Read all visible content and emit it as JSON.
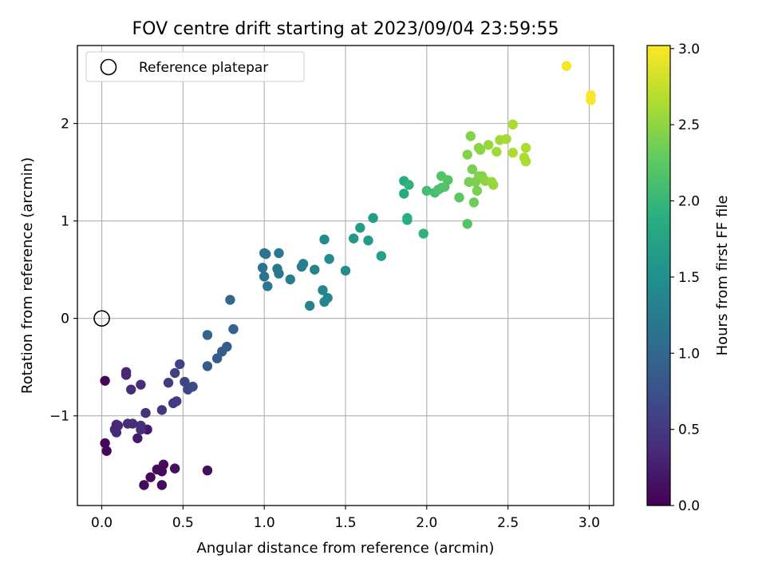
{
  "chart_data": {
    "type": "scatter",
    "title": "FOV centre drift starting at 2023/09/04 23:59:55",
    "xlabel": "Angular distance from reference (arcmin)",
    "ylabel": "Rotation from reference (arcmin)",
    "colorbar_label": "Hours from first FF file",
    "xlim": [
      -0.15,
      3.15
    ],
    "ylim": [
      -1.92,
      2.8
    ],
    "clim": [
      0.0,
      3.02
    ],
    "xticks": [
      0.0,
      0.5,
      1.0,
      1.5,
      2.0,
      2.5,
      3.0
    ],
    "xtick_labels": [
      "0.0",
      "0.5",
      "1.0",
      "1.5",
      "2.0",
      "2.5",
      "3.0"
    ],
    "yticks": [
      -1,
      0,
      1,
      2
    ],
    "ytick_labels": [
      "−1",
      "0",
      "1",
      "2"
    ],
    "cticks": [
      0.0,
      0.5,
      1.0,
      1.5,
      2.0,
      2.5,
      3.0
    ],
    "ctick_labels": [
      "0.0",
      "0.5",
      "1.0",
      "1.5",
      "2.0",
      "2.5",
      "3.0"
    ],
    "colormap": "viridis",
    "grid": true,
    "legend": {
      "position": "top-left",
      "entries": [
        "Reference platepar"
      ]
    },
    "reference_point": {
      "x": 0.0,
      "y": 0.0,
      "name": "Reference platepar"
    },
    "points": [
      {
        "x": 0.02,
        "y": -0.64,
        "t": 0.05
      },
      {
        "x": 0.02,
        "y": -1.28,
        "t": 0.05
      },
      {
        "x": 0.03,
        "y": -1.36,
        "t": 0.05
      },
      {
        "x": 0.26,
        "y": -1.71,
        "t": 0.08
      },
      {
        "x": 0.3,
        "y": -1.63,
        "t": 0.08
      },
      {
        "x": 0.34,
        "y": -1.55,
        "t": 0.08
      },
      {
        "x": 0.37,
        "y": -1.71,
        "t": 0.1
      },
      {
        "x": 0.37,
        "y": -1.57,
        "t": 0.1
      },
      {
        "x": 0.38,
        "y": -1.5,
        "t": 0.1
      },
      {
        "x": 0.45,
        "y": -1.54,
        "t": 0.12
      },
      {
        "x": 0.65,
        "y": -1.56,
        "t": 0.12
      },
      {
        "x": 0.28,
        "y": -1.14,
        "t": 0.2
      },
      {
        "x": 0.22,
        "y": -1.23,
        "t": 0.22
      },
      {
        "x": 0.09,
        "y": -1.09,
        "t": 0.35
      },
      {
        "x": 0.08,
        "y": -1.14,
        "t": 0.35
      },
      {
        "x": 0.09,
        "y": -1.17,
        "t": 0.35
      },
      {
        "x": 0.1,
        "y": -1.1,
        "t": 0.35
      },
      {
        "x": 0.15,
        "y": -0.55,
        "t": 0.35
      },
      {
        "x": 0.15,
        "y": -0.58,
        "t": 0.35
      },
      {
        "x": 0.16,
        "y": -1.08,
        "t": 0.4
      },
      {
        "x": 0.19,
        "y": -1.08,
        "t": 0.4
      },
      {
        "x": 0.18,
        "y": -0.73,
        "t": 0.4
      },
      {
        "x": 0.24,
        "y": -0.68,
        "t": 0.4
      },
      {
        "x": 0.24,
        "y": -1.14,
        "t": 0.42
      },
      {
        "x": 0.24,
        "y": -1.1,
        "t": 0.42
      },
      {
        "x": 0.27,
        "y": -0.97,
        "t": 0.45
      },
      {
        "x": 0.37,
        "y": -0.94,
        "t": 0.5
      },
      {
        "x": 0.41,
        "y": -0.66,
        "t": 0.55
      },
      {
        "x": 0.44,
        "y": -0.87,
        "t": 0.55
      },
      {
        "x": 0.46,
        "y": -0.85,
        "t": 0.55
      },
      {
        "x": 0.45,
        "y": -0.56,
        "t": 0.58
      },
      {
        "x": 0.48,
        "y": -0.47,
        "t": 0.6
      },
      {
        "x": 0.51,
        "y": -0.65,
        "t": 0.62
      },
      {
        "x": 0.53,
        "y": -0.73,
        "t": 0.65
      },
      {
        "x": 0.56,
        "y": -0.7,
        "t": 0.68
      },
      {
        "x": 0.65,
        "y": -0.49,
        "t": 0.85
      },
      {
        "x": 0.71,
        "y": -0.41,
        "t": 0.85
      },
      {
        "x": 0.74,
        "y": -0.34,
        "t": 0.88
      },
      {
        "x": 0.77,
        "y": -0.29,
        "t": 0.9
      },
      {
        "x": 0.65,
        "y": -0.17,
        "t": 0.95
      },
      {
        "x": 0.81,
        "y": -0.11,
        "t": 0.95
      },
      {
        "x": 0.79,
        "y": 0.19,
        "t": 1.0
      },
      {
        "x": 0.99,
        "y": 0.52,
        "t": 1.15
      },
      {
        "x": 1.0,
        "y": 0.43,
        "t": 1.15
      },
      {
        "x": 1.0,
        "y": 0.67,
        "t": 1.18
      },
      {
        "x": 1.01,
        "y": 0.66,
        "t": 1.18
      },
      {
        "x": 1.02,
        "y": 0.33,
        "t": 1.2
      },
      {
        "x": 1.08,
        "y": 0.51,
        "t": 1.2
      },
      {
        "x": 1.09,
        "y": 0.46,
        "t": 1.22
      },
      {
        "x": 1.09,
        "y": 0.67,
        "t": 1.22
      },
      {
        "x": 1.16,
        "y": 0.4,
        "t": 1.25
      },
      {
        "x": 1.23,
        "y": 0.53,
        "t": 1.3
      },
      {
        "x": 1.24,
        "y": 0.56,
        "t": 1.3
      },
      {
        "x": 1.28,
        "y": 0.13,
        "t": 1.35
      },
      {
        "x": 1.31,
        "y": 0.5,
        "t": 1.35
      },
      {
        "x": 1.36,
        "y": 0.29,
        "t": 1.38
      },
      {
        "x": 1.37,
        "y": 0.17,
        "t": 1.4
      },
      {
        "x": 1.37,
        "y": 0.81,
        "t": 1.45
      },
      {
        "x": 1.39,
        "y": 0.21,
        "t": 1.4
      },
      {
        "x": 1.4,
        "y": 0.61,
        "t": 1.45
      },
      {
        "x": 1.5,
        "y": 0.49,
        "t": 1.5
      },
      {
        "x": 1.55,
        "y": 0.82,
        "t": 1.6
      },
      {
        "x": 1.59,
        "y": 0.93,
        "t": 1.65
      },
      {
        "x": 1.64,
        "y": 0.8,
        "t": 1.65
      },
      {
        "x": 1.67,
        "y": 1.03,
        "t": 1.7
      },
      {
        "x": 1.72,
        "y": 0.64,
        "t": 1.72
      },
      {
        "x": 1.86,
        "y": 1.41,
        "t": 1.85
      },
      {
        "x": 1.86,
        "y": 1.28,
        "t": 1.85
      },
      {
        "x": 1.88,
        "y": 1.03,
        "t": 1.9
      },
      {
        "x": 1.88,
        "y": 1.01,
        "t": 1.9
      },
      {
        "x": 1.89,
        "y": 1.37,
        "t": 1.95
      },
      {
        "x": 1.98,
        "y": 0.87,
        "t": 1.95
      },
      {
        "x": 2.0,
        "y": 1.31,
        "t": 2.1
      },
      {
        "x": 2.05,
        "y": 1.29,
        "t": 2.1
      },
      {
        "x": 2.07,
        "y": 1.32,
        "t": 2.15
      },
      {
        "x": 2.09,
        "y": 1.34,
        "t": 2.15
      },
      {
        "x": 2.09,
        "y": 1.46,
        "t": 2.2
      },
      {
        "x": 2.11,
        "y": 1.35,
        "t": 2.2
      },
      {
        "x": 2.13,
        "y": 1.42,
        "t": 2.2
      },
      {
        "x": 2.2,
        "y": 1.24,
        "t": 2.25
      },
      {
        "x": 2.25,
        "y": 0.97,
        "t": 2.2
      },
      {
        "x": 2.25,
        "y": 1.68,
        "t": 2.45
      },
      {
        "x": 2.26,
        "y": 1.4,
        "t": 2.4
      },
      {
        "x": 2.27,
        "y": 1.87,
        "t": 2.45
      },
      {
        "x": 2.28,
        "y": 1.53,
        "t": 2.4
      },
      {
        "x": 2.29,
        "y": 1.19,
        "t": 2.35
      },
      {
        "x": 2.3,
        "y": 1.4,
        "t": 2.4
      },
      {
        "x": 2.31,
        "y": 1.31,
        "t": 2.4
      },
      {
        "x": 2.32,
        "y": 1.46,
        "t": 2.45
      },
      {
        "x": 2.32,
        "y": 1.75,
        "t": 2.5
      },
      {
        "x": 2.33,
        "y": 1.73,
        "t": 2.5
      },
      {
        "x": 2.34,
        "y": 1.46,
        "t": 2.45
      },
      {
        "x": 2.36,
        "y": 1.41,
        "t": 2.5
      },
      {
        "x": 2.38,
        "y": 1.78,
        "t": 2.55
      },
      {
        "x": 2.4,
        "y": 1.4,
        "t": 2.55
      },
      {
        "x": 2.41,
        "y": 1.37,
        "t": 2.55
      },
      {
        "x": 2.43,
        "y": 1.71,
        "t": 2.6
      },
      {
        "x": 2.45,
        "y": 1.83,
        "t": 2.6
      },
      {
        "x": 2.49,
        "y": 1.84,
        "t": 2.62
      },
      {
        "x": 2.53,
        "y": 1.7,
        "t": 2.65
      },
      {
        "x": 2.53,
        "y": 1.99,
        "t": 2.65
      },
      {
        "x": 2.6,
        "y": 1.65,
        "t": 2.65
      },
      {
        "x": 2.61,
        "y": 1.61,
        "t": 2.65
      },
      {
        "x": 2.61,
        "y": 1.75,
        "t": 2.65
      },
      {
        "x": 2.86,
        "y": 2.59,
        "t": 2.98
      },
      {
        "x": 3.01,
        "y": 2.29,
        "t": 3.0
      },
      {
        "x": 3.01,
        "y": 2.24,
        "t": 3.0
      }
    ]
  }
}
